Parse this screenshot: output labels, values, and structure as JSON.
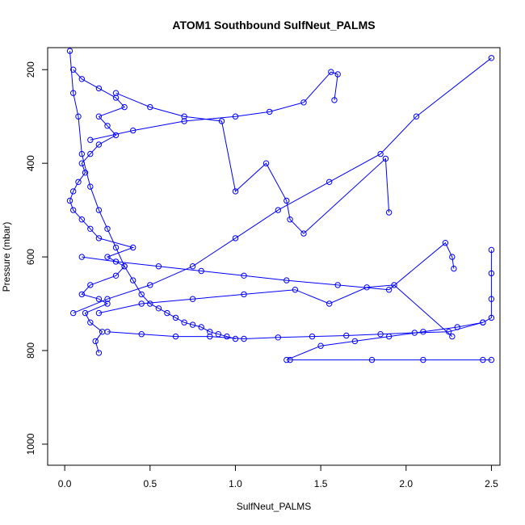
{
  "chart_data": {
    "type": "line",
    "title": "ATOM1 Southbound SulfNeut_PALMS",
    "xlabel": "SulfNeut_PALMS",
    "ylabel": "Pressure (mbar)",
    "xlim": [
      -0.1,
      2.55
    ],
    "ylim": [
      1045,
      153
    ],
    "x_ticks": [
      0,
      0.5,
      1,
      1.5,
      2,
      2.5
    ],
    "x_tick_labels": [
      "0.0",
      "0.5",
      "1.0",
      "1.5",
      "2.0",
      "2.5"
    ],
    "y_ticks": [
      200,
      400,
      600,
      800,
      1000
    ],
    "y_tick_labels": [
      "200",
      "400",
      "600",
      "800",
      "1000"
    ],
    "grid": false,
    "legend": "none",
    "series_color": "#0000ff",
    "marker": "open-circle",
    "series": [
      {
        "x": [
          0.2,
          0.18,
          0.22,
          0.15,
          0.12,
          0.25,
          0.2,
          0.1,
          0.15,
          0.3,
          0.35,
          0.25,
          0.4,
          0.2,
          0.15,
          0.1,
          0.05,
          0.03,
          0.05,
          0.08,
          0.12,
          0.1,
          0.15,
          0.2,
          0.3,
          0.25,
          0.2,
          0.35,
          0.3,
          0.2,
          0.1,
          0.05
        ],
        "y": [
          805,
          780,
          760,
          740,
          720,
          700,
          690,
          680,
          660,
          640,
          620,
          600,
          580,
          560,
          540,
          520,
          500,
          480,
          460,
          440,
          420,
          400,
          380,
          360,
          340,
          320,
          300,
          280,
          260,
          240,
          220,
          200
        ]
      },
      {
        "x": [
          0.03,
          0.05,
          0.08,
          0.1,
          0.15,
          0.2,
          0.25,
          0.3,
          0.35,
          0.4,
          0.45,
          0.5,
          0.55,
          0.6,
          0.65,
          0.7,
          0.75,
          0.8,
          0.85,
          0.9,
          0.95,
          1.0
        ],
        "y": [
          160,
          250,
          300,
          380,
          450,
          500,
          540,
          580,
          620,
          650,
          680,
          700,
          710,
          720,
          730,
          740,
          745,
          750,
          760,
          765,
          770,
          775
        ]
      },
      {
        "x": [
          2.5,
          2.5,
          2.5,
          2.5,
          2.45,
          2.3,
          2.1,
          1.9,
          1.7,
          1.5,
          1.3
        ],
        "y": [
          585,
          635,
          690,
          730,
          740,
          750,
          760,
          770,
          780,
          790,
          820
        ]
      },
      {
        "x": [
          1.32,
          1.8,
          2.1,
          2.45,
          2.5
        ],
        "y": [
          820,
          820,
          820,
          820,
          820
        ]
      },
      {
        "x": [
          0.05,
          0.25,
          0.5,
          0.75,
          1.0,
          1.25,
          1.55,
          1.85,
          2.06,
          2.5
        ],
        "y": [
          720,
          690,
          660,
          620,
          560,
          500,
          440,
          380,
          300,
          175
        ]
      },
      {
        "x": [
          0.1,
          0.3,
          0.55,
          0.8,
          1.05,
          1.3,
          1.6,
          1.9,
          2.23,
          2.27,
          2.28
        ],
        "y": [
          600,
          610,
          620,
          630,
          640,
          650,
          660,
          670,
          570,
          600,
          625
        ]
      },
      {
        "x": [
          0.15,
          0.4,
          0.7,
          1.0,
          1.2,
          1.4,
          1.56,
          1.6,
          1.58
        ],
        "y": [
          350,
          330,
          310,
          300,
          290,
          270,
          205,
          210,
          265
        ]
      },
      {
        "x": [
          0.2,
          0.45,
          0.75,
          1.05,
          1.35,
          1.55,
          1.77,
          1.93,
          2.27
        ],
        "y": [
          720,
          700,
          690,
          680,
          670,
          700,
          665,
          660,
          770
        ]
      },
      {
        "x": [
          0.3,
          0.5,
          0.7,
          0.92,
          1.0,
          1.18,
          1.3,
          1.32,
          1.4,
          1.88,
          1.9
        ],
        "y": [
          250,
          280,
          300,
          310,
          460,
          400,
          480,
          520,
          550,
          390,
          505
        ]
      },
      {
        "x": [
          0.25,
          0.45,
          0.65,
          0.85,
          1.05,
          1.25,
          1.45,
          1.65,
          1.85,
          2.05,
          2.25,
          2.45
        ],
        "y": [
          760,
          765,
          770,
          770,
          775,
          772,
          770,
          768,
          765,
          762,
          760,
          740
        ]
      }
    ]
  }
}
